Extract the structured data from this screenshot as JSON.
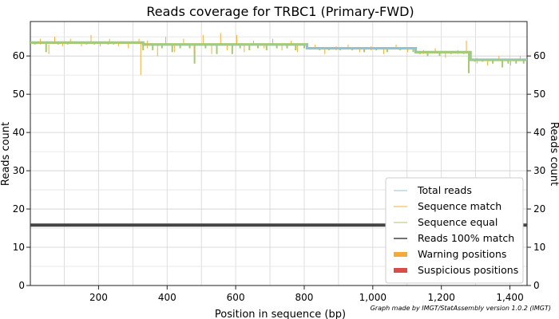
{
  "chart_data": {
    "type": "line",
    "title": "Reads coverage for TRBC1 (Primary-FWD)",
    "xlabel": "Position in sequence (bp)",
    "ylabel": "Reads count",
    "ylabel_right": "Reads count",
    "xlim": [
      1,
      1450
    ],
    "ylim": [
      0,
      69
    ],
    "xticks": [
      200,
      400,
      600,
      800,
      1000,
      1200,
      1400
    ],
    "xtick_labels": [
      "200",
      "400",
      "600",
      "800",
      "1,000",
      "1,200",
      "1,400"
    ],
    "yticks": [
      0,
      10,
      20,
      30,
      40,
      50,
      60
    ],
    "grid": true,
    "legend_position": "bottom-right",
    "credit": "Graph made by IMGT/StatAssembly version 1.0.2 (IMGT)",
    "series": [
      {
        "name": "Total reads",
        "color": "#8ec6d8",
        "segments": [
          {
            "x": [
              1,
              330
            ],
            "y": 63.5
          },
          {
            "x": [
              330,
              808
            ],
            "y": 63.0
          },
          {
            "x": [
              808,
              1125
            ],
            "y": 62.0
          },
          {
            "x": [
              1125,
              1285
            ],
            "y": 61.0
          },
          {
            "x": [
              1285,
              1450
            ],
            "y": 59.0
          }
        ]
      },
      {
        "name": "Sequence match",
        "color": "#f0b030",
        "spikes": [
          [
            30,
            64.5,
            63.0
          ],
          [
            55,
            63.0,
            60.5
          ],
          [
            72,
            65.0,
            63.5
          ],
          [
            95,
            63.5,
            62.5
          ],
          [
            118,
            64.5,
            63.5
          ],
          [
            150,
            63.5,
            62.5
          ],
          [
            178,
            65.5,
            63.5
          ],
          [
            205,
            63.5,
            62.5
          ],
          [
            232,
            64.5,
            63.5
          ],
          [
            258,
            63.5,
            62.5
          ],
          [
            287,
            63.5,
            62.0
          ],
          [
            318,
            64.5,
            63.5
          ],
          [
            323,
            63.5,
            55.0
          ],
          [
            342,
            64.0,
            62.0
          ],
          [
            372,
            63.0,
            60.0
          ],
          [
            396,
            65.0,
            63.0
          ],
          [
            422,
            63.0,
            61.0
          ],
          [
            448,
            64.5,
            63.0
          ],
          [
            479,
            63.0,
            60.5
          ],
          [
            505,
            65.5,
            63.0
          ],
          [
            530,
            63.0,
            60.5
          ],
          [
            556,
            66.0,
            63.0
          ],
          [
            575,
            63.0,
            61.5
          ],
          [
            603,
            65.5,
            63.0
          ],
          [
            625,
            63.0,
            61.0
          ],
          [
            652,
            64.0,
            63.0
          ],
          [
            683,
            63.0,
            62.0
          ],
          [
            708,
            64.5,
            63.0
          ],
          [
            735,
            63.0,
            61.5
          ],
          [
            762,
            64.0,
            63.0
          ],
          [
            780,
            63.0,
            61.0
          ],
          [
            832,
            63.0,
            62.0
          ],
          [
            860,
            62.0,
            60.5
          ],
          [
            893,
            62.5,
            61.5
          ],
          [
            928,
            63.0,
            62.0
          ],
          [
            962,
            62.0,
            61.0
          ],
          [
            995,
            62.5,
            61.5
          ],
          [
            1032,
            62.0,
            60.5
          ],
          [
            1068,
            63.0,
            62.0
          ],
          [
            1102,
            62.0,
            61.0
          ],
          [
            1148,
            61.5,
            60.5
          ],
          [
            1182,
            62.0,
            61.0
          ],
          [
            1212,
            61.0,
            59.5
          ],
          [
            1248,
            61.5,
            60.5
          ],
          [
            1273,
            64.0,
            61.0
          ],
          [
            1304,
            59.5,
            58.0
          ],
          [
            1335,
            59.0,
            57.5
          ],
          [
            1368,
            60.0,
            59.0
          ],
          [
            1402,
            59.0,
            57.5
          ],
          [
            1430,
            60.0,
            59.0
          ]
        ]
      },
      {
        "name": "Sequence equal",
        "color": "#a5c96f",
        "segments": [
          {
            "x": [
              1,
              330
            ],
            "y": 63.5
          },
          {
            "x": [
              330,
              808
            ],
            "y": 63.0
          },
          {
            "x": [
              808,
              1125
            ],
            "y": 62.0
          },
          {
            "x": [
              1125,
              1285
            ],
            "y": 61.0
          },
          {
            "x": [
              1285,
              1450
            ],
            "y": 59.0
          }
        ],
        "dips": [
          [
            14,
            63.0
          ],
          [
            47,
            61.0
          ],
          [
            82,
            63.0
          ],
          [
            110,
            63.0
          ],
          [
            165,
            63.0
          ],
          [
            188,
            63.0
          ],
          [
            228,
            63.0
          ],
          [
            244,
            63.0
          ],
          [
            330,
            61.5
          ],
          [
            358,
            61.5
          ],
          [
            385,
            62.0
          ],
          [
            415,
            61.0
          ],
          [
            438,
            62.0
          ],
          [
            466,
            62.0
          ],
          [
            480,
            58.0
          ],
          [
            512,
            62.0
          ],
          [
            545,
            60.5
          ],
          [
            590,
            60.5
          ],
          [
            613,
            62.0
          ],
          [
            640,
            61.5
          ],
          [
            665,
            62.0
          ],
          [
            690,
            61.5
          ],
          [
            720,
            62.0
          ],
          [
            750,
            62.0
          ],
          [
            775,
            61.5
          ],
          [
            800,
            62.0
          ],
          [
            845,
            61.5
          ],
          [
            872,
            61.5
          ],
          [
            905,
            61.5
          ],
          [
            940,
            61.5
          ],
          [
            975,
            61.0
          ],
          [
            1010,
            61.5
          ],
          [
            1042,
            61.0
          ],
          [
            1080,
            61.5
          ],
          [
            1118,
            61.0
          ],
          [
            1138,
            60.5
          ],
          [
            1160,
            60.0
          ],
          [
            1195,
            60.0
          ],
          [
            1228,
            60.5
          ],
          [
            1265,
            60.5
          ],
          [
            1280,
            55.5
          ],
          [
            1298,
            58.5
          ],
          [
            1320,
            58.5
          ],
          [
            1350,
            58.0
          ],
          [
            1378,
            57.0
          ],
          [
            1395,
            58.0
          ],
          [
            1418,
            58.0
          ],
          [
            1440,
            58.0
          ]
        ]
      },
      {
        "name": "Reads 100% match",
        "color": "#444444",
        "segments": [
          {
            "x": [
              1,
              1450
            ],
            "y": 15.8
          }
        ]
      },
      {
        "name": "Warning positions",
        "color": "#f5a93a",
        "values": []
      },
      {
        "name": "Suspicious positions",
        "color": "#d94c4c",
        "values": []
      }
    ]
  }
}
